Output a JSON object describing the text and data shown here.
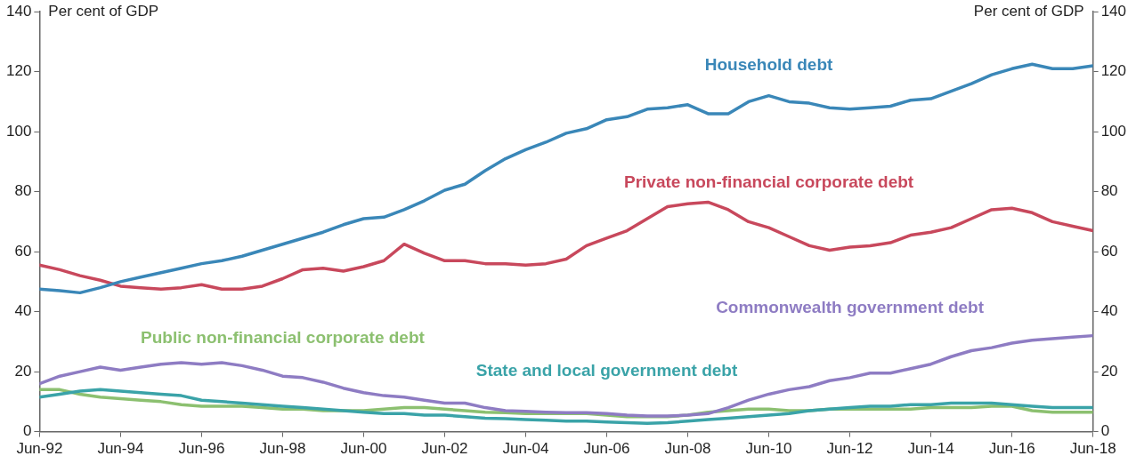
{
  "chart_data": {
    "type": "line",
    "ylabel": "Per cent of GDP",
    "y2label": "Per cent of GDP",
    "x": [
      "1992-06",
      "1992-12",
      "1993-06",
      "1993-12",
      "1994-06",
      "1994-12",
      "1995-06",
      "1995-12",
      "1996-06",
      "1996-12",
      "1997-06",
      "1997-12",
      "1998-06",
      "1998-12",
      "1999-06",
      "1999-12",
      "2000-06",
      "2000-12",
      "2001-06",
      "2001-12",
      "2002-06",
      "2002-12",
      "2003-06",
      "2003-12",
      "2004-06",
      "2004-12",
      "2005-06",
      "2005-12",
      "2006-06",
      "2006-12",
      "2007-06",
      "2007-12",
      "2008-06",
      "2008-12",
      "2009-06",
      "2009-12",
      "2010-06",
      "2010-12",
      "2011-06",
      "2011-12",
      "2012-06",
      "2012-12",
      "2013-06",
      "2013-12",
      "2014-06",
      "2014-12",
      "2015-06",
      "2015-12",
      "2016-06",
      "2016-12",
      "2017-06",
      "2017-12",
      "2018-06"
    ],
    "series": [
      {
        "name": "Household debt",
        "color": "#3a87b8",
        "values": [
          47.5,
          47,
          46.3,
          48,
          50,
          51.5,
          53,
          54.5,
          56,
          57,
          58.5,
          60.5,
          62.5,
          64.5,
          66.5,
          69,
          71,
          71.5,
          74,
          77,
          80.5,
          82.5,
          87,
          91,
          94,
          96.5,
          99.5,
          101,
          104,
          105,
          107.5,
          108,
          109,
          106,
          106,
          110,
          112,
          110,
          109.5,
          108,
          107.5,
          108,
          108.5,
          110.5,
          111,
          113.5,
          116,
          119,
          121,
          122.5,
          121,
          121,
          122
        ]
      },
      {
        "name": "Private non-financial corporate debt",
        "color": "#c8485c",
        "values": [
          55.5,
          54,
          52,
          50.5,
          48.5,
          48,
          47.5,
          48,
          49,
          47.5,
          47.5,
          48.5,
          51,
          54,
          54.5,
          53.5,
          55,
          57,
          62.5,
          59.5,
          57,
          57,
          56,
          56,
          55.5,
          56,
          57.5,
          62,
          64.5,
          67,
          71,
          75,
          76,
          76.5,
          74,
          70,
          68,
          65,
          62,
          60.5,
          61.5,
          62,
          63,
          65.5,
          66.5,
          68,
          71,
          74,
          74.5,
          73,
          70,
          68.5,
          67
        ]
      },
      {
        "name": "Commonwealth government debt",
        "color": "#8e7cc3",
        "values": [
          16,
          18.5,
          20,
          21.5,
          20.5,
          21.5,
          22.5,
          23,
          22.5,
          23,
          22,
          20.5,
          18.5,
          18,
          16.5,
          14.5,
          13,
          12,
          11.5,
          10.5,
          9.5,
          9.5,
          8,
          7,
          6.8,
          6.5,
          6.3,
          6.3,
          6,
          5.5,
          5.2,
          5.2,
          5.5,
          6,
          8,
          10.5,
          12.5,
          14,
          15,
          17,
          18,
          19.5,
          19.5,
          21,
          22.5,
          25,
          27,
          28,
          29.5,
          30.5,
          31,
          31.5,
          32
        ]
      },
      {
        "name": "State and local government debt",
        "color": "#3aa3a8",
        "values": [
          11.5,
          12.5,
          13.5,
          14,
          13.5,
          13,
          12.5,
          12,
          10.5,
          10,
          9.5,
          9,
          8.5,
          8,
          7.5,
          7,
          6.5,
          6,
          6,
          5.5,
          5.5,
          5,
          4.5,
          4.3,
          4,
          3.8,
          3.5,
          3.5,
          3.2,
          3,
          2.8,
          3,
          3.5,
          4,
          4.5,
          5,
          5.5,
          6,
          7,
          7.5,
          8,
          8.5,
          8.5,
          9,
          9,
          9.5,
          9.5,
          9.5,
          9,
          8.5,
          8,
          8,
          8
        ]
      },
      {
        "name": "Public non-financial corporate debt",
        "color": "#8cc070",
        "values": [
          14,
          14,
          12.5,
          11.5,
          11,
          10.5,
          10,
          9,
          8.5,
          8.5,
          8.5,
          8,
          7.5,
          7.5,
          7,
          7,
          7,
          7.5,
          8,
          8,
          7.5,
          7,
          6.5,
          6.3,
          6,
          6,
          6,
          6,
          5.5,
          5,
          5,
          5,
          5.5,
          6.5,
          7,
          7.5,
          7.5,
          7,
          7,
          7.5,
          7.5,
          7.5,
          7.5,
          7.5,
          8,
          8,
          8,
          8.5,
          8.5,
          7,
          6.5,
          6.5,
          6.5
        ]
      }
    ],
    "xlim": [
      "1992-06",
      "2018-06"
    ],
    "xticks": [
      {
        "value": "1992-06",
        "label": "Jun-92"
      },
      {
        "value": "1994-06",
        "label": "Jun-94"
      },
      {
        "value": "1996-06",
        "label": "Jun-96"
      },
      {
        "value": "1998-06",
        "label": "Jun-98"
      },
      {
        "value": "2000-06",
        "label": "Jun-00"
      },
      {
        "value": "2002-06",
        "label": "Jun-02"
      },
      {
        "value": "2004-06",
        "label": "Jun-04"
      },
      {
        "value": "2006-06",
        "label": "Jun-06"
      },
      {
        "value": "2008-06",
        "label": "Jun-08"
      },
      {
        "value": "2010-06",
        "label": "Jun-10"
      },
      {
        "value": "2012-06",
        "label": "Jun-12"
      },
      {
        "value": "2014-06",
        "label": "Jun-14"
      },
      {
        "value": "2016-06",
        "label": "Jun-16"
      },
      {
        "value": "2018-06",
        "label": "Jun-18"
      }
    ],
    "ylim": [
      0,
      140
    ],
    "yticks": [
      0,
      20,
      40,
      60,
      80,
      100,
      120,
      140
    ],
    "y2lim": [
      0,
      140
    ],
    "y2ticks": [
      0,
      20,
      40,
      60,
      80,
      100,
      120,
      140
    ],
    "grid": false,
    "legend": false,
    "marker": "none",
    "line_style": "solid"
  }
}
